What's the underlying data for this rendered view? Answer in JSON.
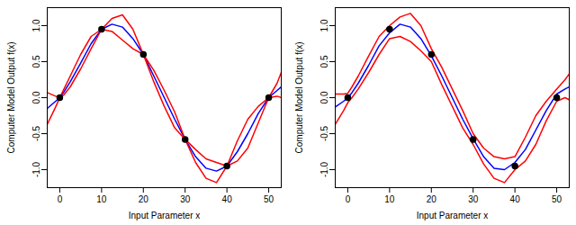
{
  "chart_data": [
    {
      "type": "line",
      "x_label": "Input Parameter x",
      "y_label": "Computer Model Output f(x)",
      "xlim": [
        -3,
        53
      ],
      "ylim": [
        -1.25,
        1.25
      ],
      "xticks": [
        0,
        10,
        20,
        30,
        40,
        50
      ],
      "yticks": [
        {
          "value": -1,
          "label": "-1.0"
        },
        -0.5,
        {
          "value": 0,
          "label": "0.0"
        },
        0.5,
        {
          "value": 1,
          "label": "1.0"
        }
      ],
      "grid": false,
      "x": [
        -3,
        -1,
        0,
        1,
        2.5,
        5,
        7.5,
        10,
        12.5,
        15,
        17.5,
        20,
        22.5,
        25,
        27.5,
        30,
        32.5,
        35,
        37.5,
        40,
        42.5,
        45,
        47.5,
        50,
        52,
        53
      ],
      "series": [
        {
          "type": "line",
          "color": "#0000ff",
          "line_style": "solid",
          "values": [
            -0.15,
            -0.05,
            0,
            0.08,
            0.22,
            0.48,
            0.75,
            0.95,
            1.02,
            0.98,
            0.82,
            0.6,
            0.3,
            0.0,
            -0.3,
            -0.58,
            -0.82,
            -0.98,
            -1.02,
            -0.95,
            -0.75,
            -0.5,
            -0.22,
            0,
            0.1,
            0.15
          ]
        },
        {
          "type": "line",
          "color": "#ff0000",
          "line_style": "solid",
          "values": [
            0.07,
            0.02,
            0,
            0.12,
            0.3,
            0.6,
            0.85,
            0.95,
            1.1,
            1.15,
            0.95,
            0.6,
            0.38,
            0.1,
            -0.2,
            -0.58,
            -0.72,
            -0.85,
            -0.9,
            -0.95,
            -0.6,
            -0.3,
            -0.12,
            0,
            0.2,
            0.35
          ]
        },
        {
          "type": "line",
          "color": "#ff0000",
          "line_style": "solid",
          "values": [
            -0.37,
            -0.13,
            0,
            0.04,
            0.15,
            0.4,
            0.68,
            0.95,
            0.92,
            0.8,
            0.68,
            0.6,
            0.22,
            -0.12,
            -0.42,
            -0.58,
            -0.9,
            -1.12,
            -1.18,
            -0.95,
            -0.88,
            -0.7,
            -0.35,
            0,
            0.02,
            0.0
          ]
        },
        {
          "type": "scatter",
          "color": "#000000",
          "marker": "circle",
          "x": [
            0,
            10,
            20,
            30,
            40,
            50
          ],
          "values": [
            0,
            0.95,
            0.6,
            -0.58,
            -0.95,
            0
          ]
        }
      ]
    },
    {
      "type": "line",
      "x_label": "Input Parameter x",
      "y_label": "Computer Model Output f(x)",
      "xlim": [
        -3,
        53
      ],
      "ylim": [
        -1.25,
        1.25
      ],
      "xticks": [
        0,
        10,
        20,
        30,
        40,
        50
      ],
      "yticks": [
        {
          "value": -1,
          "label": "-1.0"
        },
        -0.5,
        {
          "value": 0,
          "label": "0.0"
        },
        0.5,
        {
          "value": 1,
          "label": "1.0"
        }
      ],
      "grid": false,
      "x": [
        -3,
        -1,
        0,
        1,
        2.5,
        5,
        7.5,
        10,
        12.5,
        15,
        17.5,
        20,
        22.5,
        25,
        27.5,
        30,
        32.5,
        35,
        37.5,
        40,
        42.5,
        45,
        47.5,
        50,
        52,
        53
      ],
      "series": [
        {
          "type": "line",
          "color": "#0000ff",
          "line_style": "solid",
          "values": [
            -0.13,
            -0.05,
            0.0,
            0.07,
            0.2,
            0.45,
            0.72,
            0.9,
            1.02,
            0.98,
            0.82,
            0.58,
            0.3,
            0.0,
            -0.3,
            -0.57,
            -0.82,
            -0.98,
            -1.0,
            -0.9,
            -0.72,
            -0.45,
            -0.18,
            0.05,
            0.12,
            0.15
          ]
        },
        {
          "type": "line",
          "color": "#ff0000",
          "line_style": "solid",
          "values": [
            0.05,
            0.05,
            0.06,
            0.15,
            0.3,
            0.58,
            0.85,
            1.0,
            1.12,
            1.17,
            1.0,
            0.68,
            0.42,
            0.12,
            -0.18,
            -0.5,
            -0.7,
            -0.82,
            -0.85,
            -0.82,
            -0.55,
            -0.25,
            -0.05,
            0.12,
            0.25,
            0.33
          ]
        },
        {
          "type": "line",
          "color": "#ff0000",
          "line_style": "solid",
          "values": [
            -0.37,
            -0.18,
            -0.07,
            0.0,
            0.12,
            0.35,
            0.6,
            0.82,
            0.85,
            0.78,
            0.65,
            0.5,
            0.18,
            -0.12,
            -0.42,
            -0.65,
            -0.92,
            -1.12,
            -1.18,
            -1.0,
            -0.88,
            -0.65,
            -0.32,
            -0.05,
            0.0,
            -0.03
          ]
        },
        {
          "type": "scatter",
          "color": "#000000",
          "marker": "circle",
          "x": [
            0,
            10,
            20,
            30,
            40,
            50
          ],
          "values": [
            0,
            0.95,
            0.6,
            -0.58,
            -0.95,
            0
          ]
        }
      ]
    }
  ]
}
